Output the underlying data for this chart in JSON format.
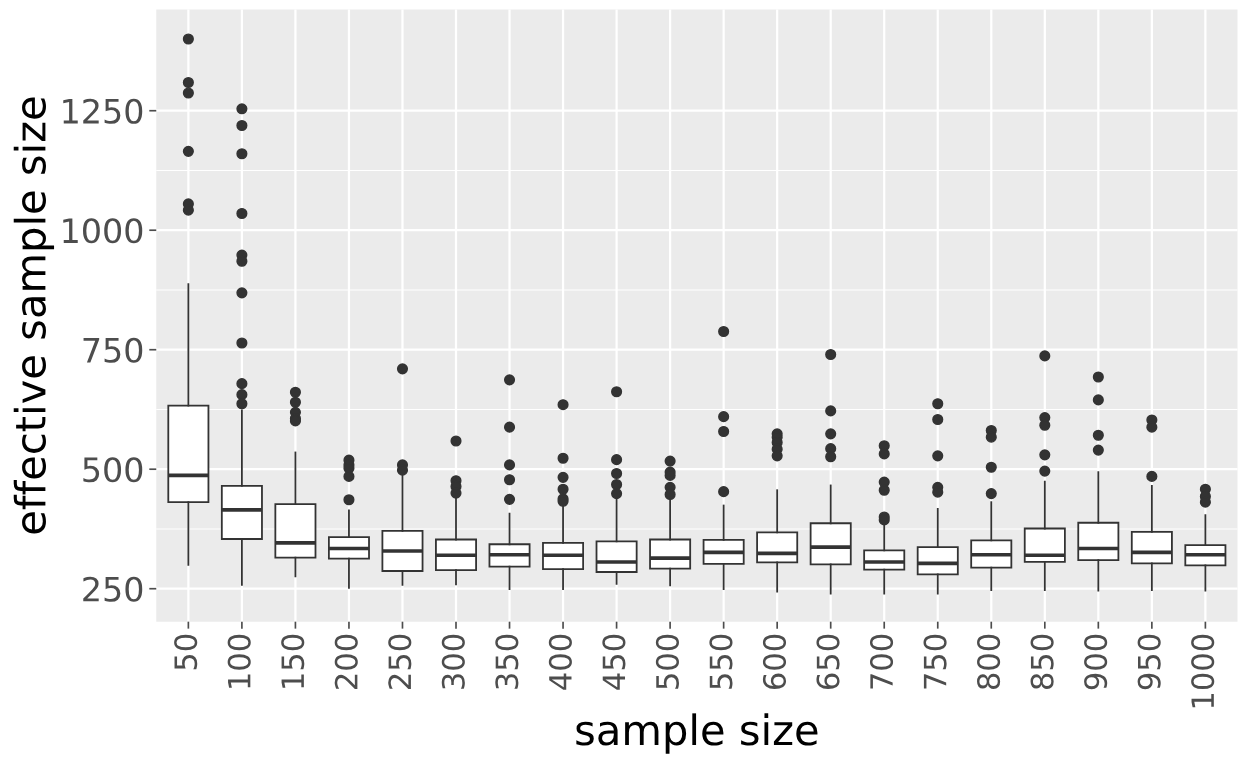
{
  "chart_data": {
    "type": "box",
    "xlabel": "sample size",
    "ylabel": "effective sample size",
    "categories": [
      "50",
      "100",
      "150",
      "200",
      "250",
      "300",
      "350",
      "400",
      "450",
      "500",
      "550",
      "600",
      "650",
      "700",
      "750",
      "800",
      "850",
      "900",
      "950",
      "1000"
    ],
    "boxes": [
      {
        "low": 300,
        "q1": 431,
        "median": 487,
        "q3": 633,
        "high": 887,
        "outliers": [
          1400,
          1309,
          1287,
          1165,
          1055,
          1042
        ]
      },
      {
        "low": 258,
        "q1": 354,
        "median": 415,
        "q3": 465,
        "high": 623,
        "outliers": [
          1254,
          1219,
          1160,
          1035,
          948,
          935,
          869,
          764,
          679,
          656,
          637
        ]
      },
      {
        "low": 276,
        "q1": 315,
        "median": 346,
        "q3": 427,
        "high": 535,
        "outliers": [
          661,
          640,
          619,
          606,
          601
        ]
      },
      {
        "low": 252,
        "q1": 313,
        "median": 334,
        "q3": 358,
        "high": 414,
        "outliers": [
          519,
          509,
          502,
          485,
          436
        ]
      },
      {
        "low": 258,
        "q1": 287,
        "median": 329,
        "q3": 371,
        "high": 502,
        "outliers": [
          710,
          509,
          498
        ]
      },
      {
        "low": 259,
        "q1": 289,
        "median": 320,
        "q3": 353,
        "high": 442,
        "outliers": [
          559,
          476,
          464,
          450
        ]
      },
      {
        "low": 249,
        "q1": 296,
        "median": 321,
        "q3": 343,
        "high": 407,
        "outliers": [
          687,
          588,
          509,
          478,
          437
        ]
      },
      {
        "low": 249,
        "q1": 291,
        "median": 320,
        "q3": 346,
        "high": 442,
        "outliers": [
          635,
          523,
          483,
          458,
          438,
          433
        ]
      },
      {
        "low": 260,
        "q1": 285,
        "median": 306,
        "q3": 349,
        "high": 442,
        "outliers": [
          662,
          520,
          491,
          468,
          449
        ]
      },
      {
        "low": 257,
        "q1": 292,
        "median": 314,
        "q3": 353,
        "high": 442,
        "outliers": [
          517,
          494,
          487,
          462,
          447
        ]
      },
      {
        "low": 249,
        "q1": 302,
        "median": 326,
        "q3": 352,
        "high": 424,
        "outliers": [
          788,
          610,
          579,
          453
        ]
      },
      {
        "low": 244,
        "q1": 305,
        "median": 324,
        "q3": 368,
        "high": 456,
        "outliers": [
          574,
          567,
          556,
          542,
          528
        ]
      },
      {
        "low": 240,
        "q1": 301,
        "median": 337,
        "q3": 387,
        "high": 466,
        "outliers": [
          740,
          622,
          574,
          543,
          526
        ]
      },
      {
        "low": 240,
        "q1": 290,
        "median": 306,
        "q3": 330,
        "high": 396,
        "outliers": [
          549,
          532,
          473,
          456,
          400,
          394
        ]
      },
      {
        "low": 240,
        "q1": 280,
        "median": 303,
        "q3": 337,
        "high": 417,
        "outliers": [
          637,
          604,
          528,
          462,
          452
        ]
      },
      {
        "low": 247,
        "q1": 294,
        "median": 321,
        "q3": 351,
        "high": 431,
        "outliers": [
          581,
          567,
          504,
          449
        ]
      },
      {
        "low": 247,
        "q1": 306,
        "median": 320,
        "q3": 376,
        "high": 474,
        "outliers": [
          737,
          608,
          592,
          530,
          496
        ]
      },
      {
        "low": 246,
        "q1": 310,
        "median": 334,
        "q3": 388,
        "high": 494,
        "outliers": [
          693,
          645,
          571,
          540
        ]
      },
      {
        "low": 247,
        "q1": 303,
        "median": 326,
        "q3": 369,
        "high": 465,
        "outliers": [
          603,
          588,
          485
        ]
      },
      {
        "low": 246,
        "q1": 299,
        "median": 321,
        "q3": 341,
        "high": 404,
        "outliers": [
          458,
          443,
          431
        ]
      }
    ],
    "color": "#ffffff",
    "ylim": [
      181,
      1462
    ],
    "yticks": [
      250,
      500,
      750,
      1000,
      1250
    ],
    "grid": true
  }
}
